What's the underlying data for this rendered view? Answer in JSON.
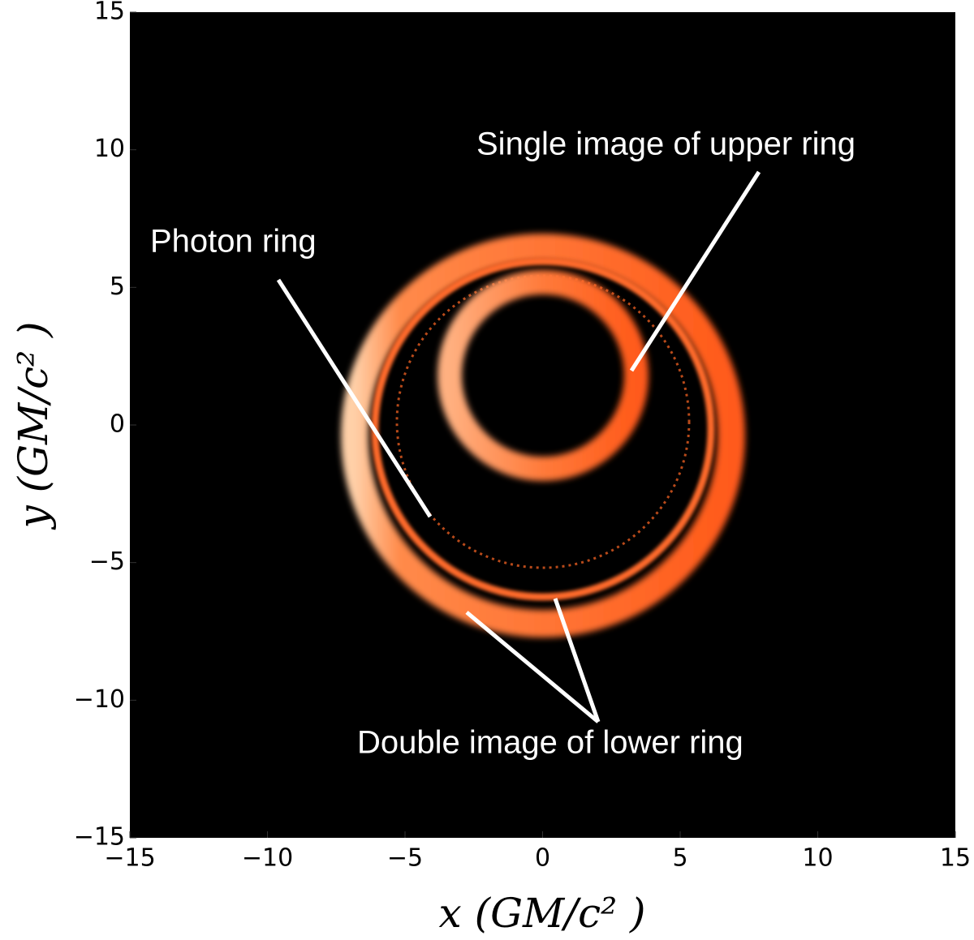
{
  "chart_data": {
    "type": "image",
    "xlabel": "x (GM/c² )",
    "ylabel": "y (GM/c² )",
    "xlim": [
      -15,
      15
    ],
    "ylim": [
      -15,
      15
    ],
    "xticks": [
      {
        "value": -15,
        "label": "−15"
      },
      {
        "value": -10,
        "label": "−10"
      },
      {
        "value": -5,
        "label": "−5"
      },
      0,
      5,
      10,
      15
    ],
    "yticks": [
      {
        "value": -15,
        "label": "−15"
      },
      {
        "value": -10,
        "label": "−10"
      },
      {
        "value": -5,
        "label": "−5"
      },
      0,
      5,
      10,
      15
    ],
    "annotations": [
      "Single image of upper ring",
      "Photon ring",
      "Double image of lower ring"
    ]
  }
}
